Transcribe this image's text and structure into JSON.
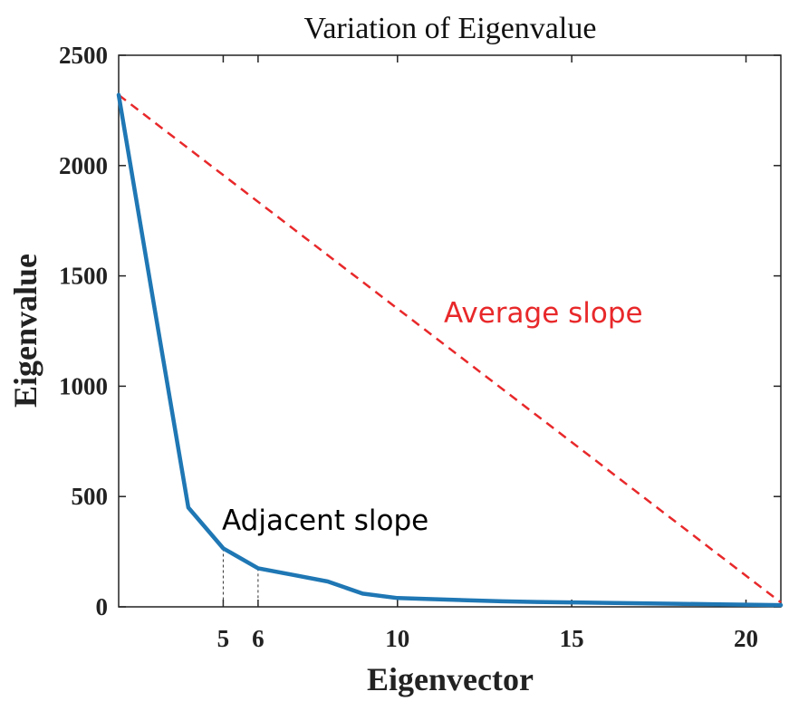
{
  "chart_data": {
    "type": "line",
    "title": "Variation of Eigenvalue",
    "xlabel": "Eigenvector",
    "ylabel": "Eigenvalue",
    "xlim": [
      2,
      21
    ],
    "ylim": [
      0,
      2500
    ],
    "x_ticks": [
      5,
      6,
      10,
      15,
      20
    ],
    "y_ticks": [
      0,
      500,
      1000,
      1500,
      2000,
      2500
    ],
    "series": [
      {
        "name": "",
        "color": "#1f77b4",
        "x": [
          2,
          3,
          4,
          5,
          6,
          7,
          8,
          9,
          10,
          11,
          12,
          13,
          14,
          15,
          16,
          17,
          18,
          19,
          20,
          21
        ],
        "values": [
          2320,
          1380,
          450,
          265,
          175,
          145,
          115,
          60,
          40,
          35,
          30,
          25,
          22,
          20,
          18,
          16,
          14,
          12,
          10,
          8
        ]
      }
    ],
    "reference_line": {
      "label": "Average slope",
      "color": "#e8282a",
      "style": "dashed",
      "x": [
        2,
        21
      ],
      "values": [
        2320,
        20
      ]
    },
    "annotations": [
      {
        "text": "Adjacent slope",
        "color": "#000000"
      },
      {
        "text": "Average slope",
        "color": "#e8282a"
      }
    ],
    "markers": [
      {
        "x": 5,
        "y": 265
      },
      {
        "x": 6,
        "y": 175
      }
    ],
    "grid": false,
    "box": true
  }
}
